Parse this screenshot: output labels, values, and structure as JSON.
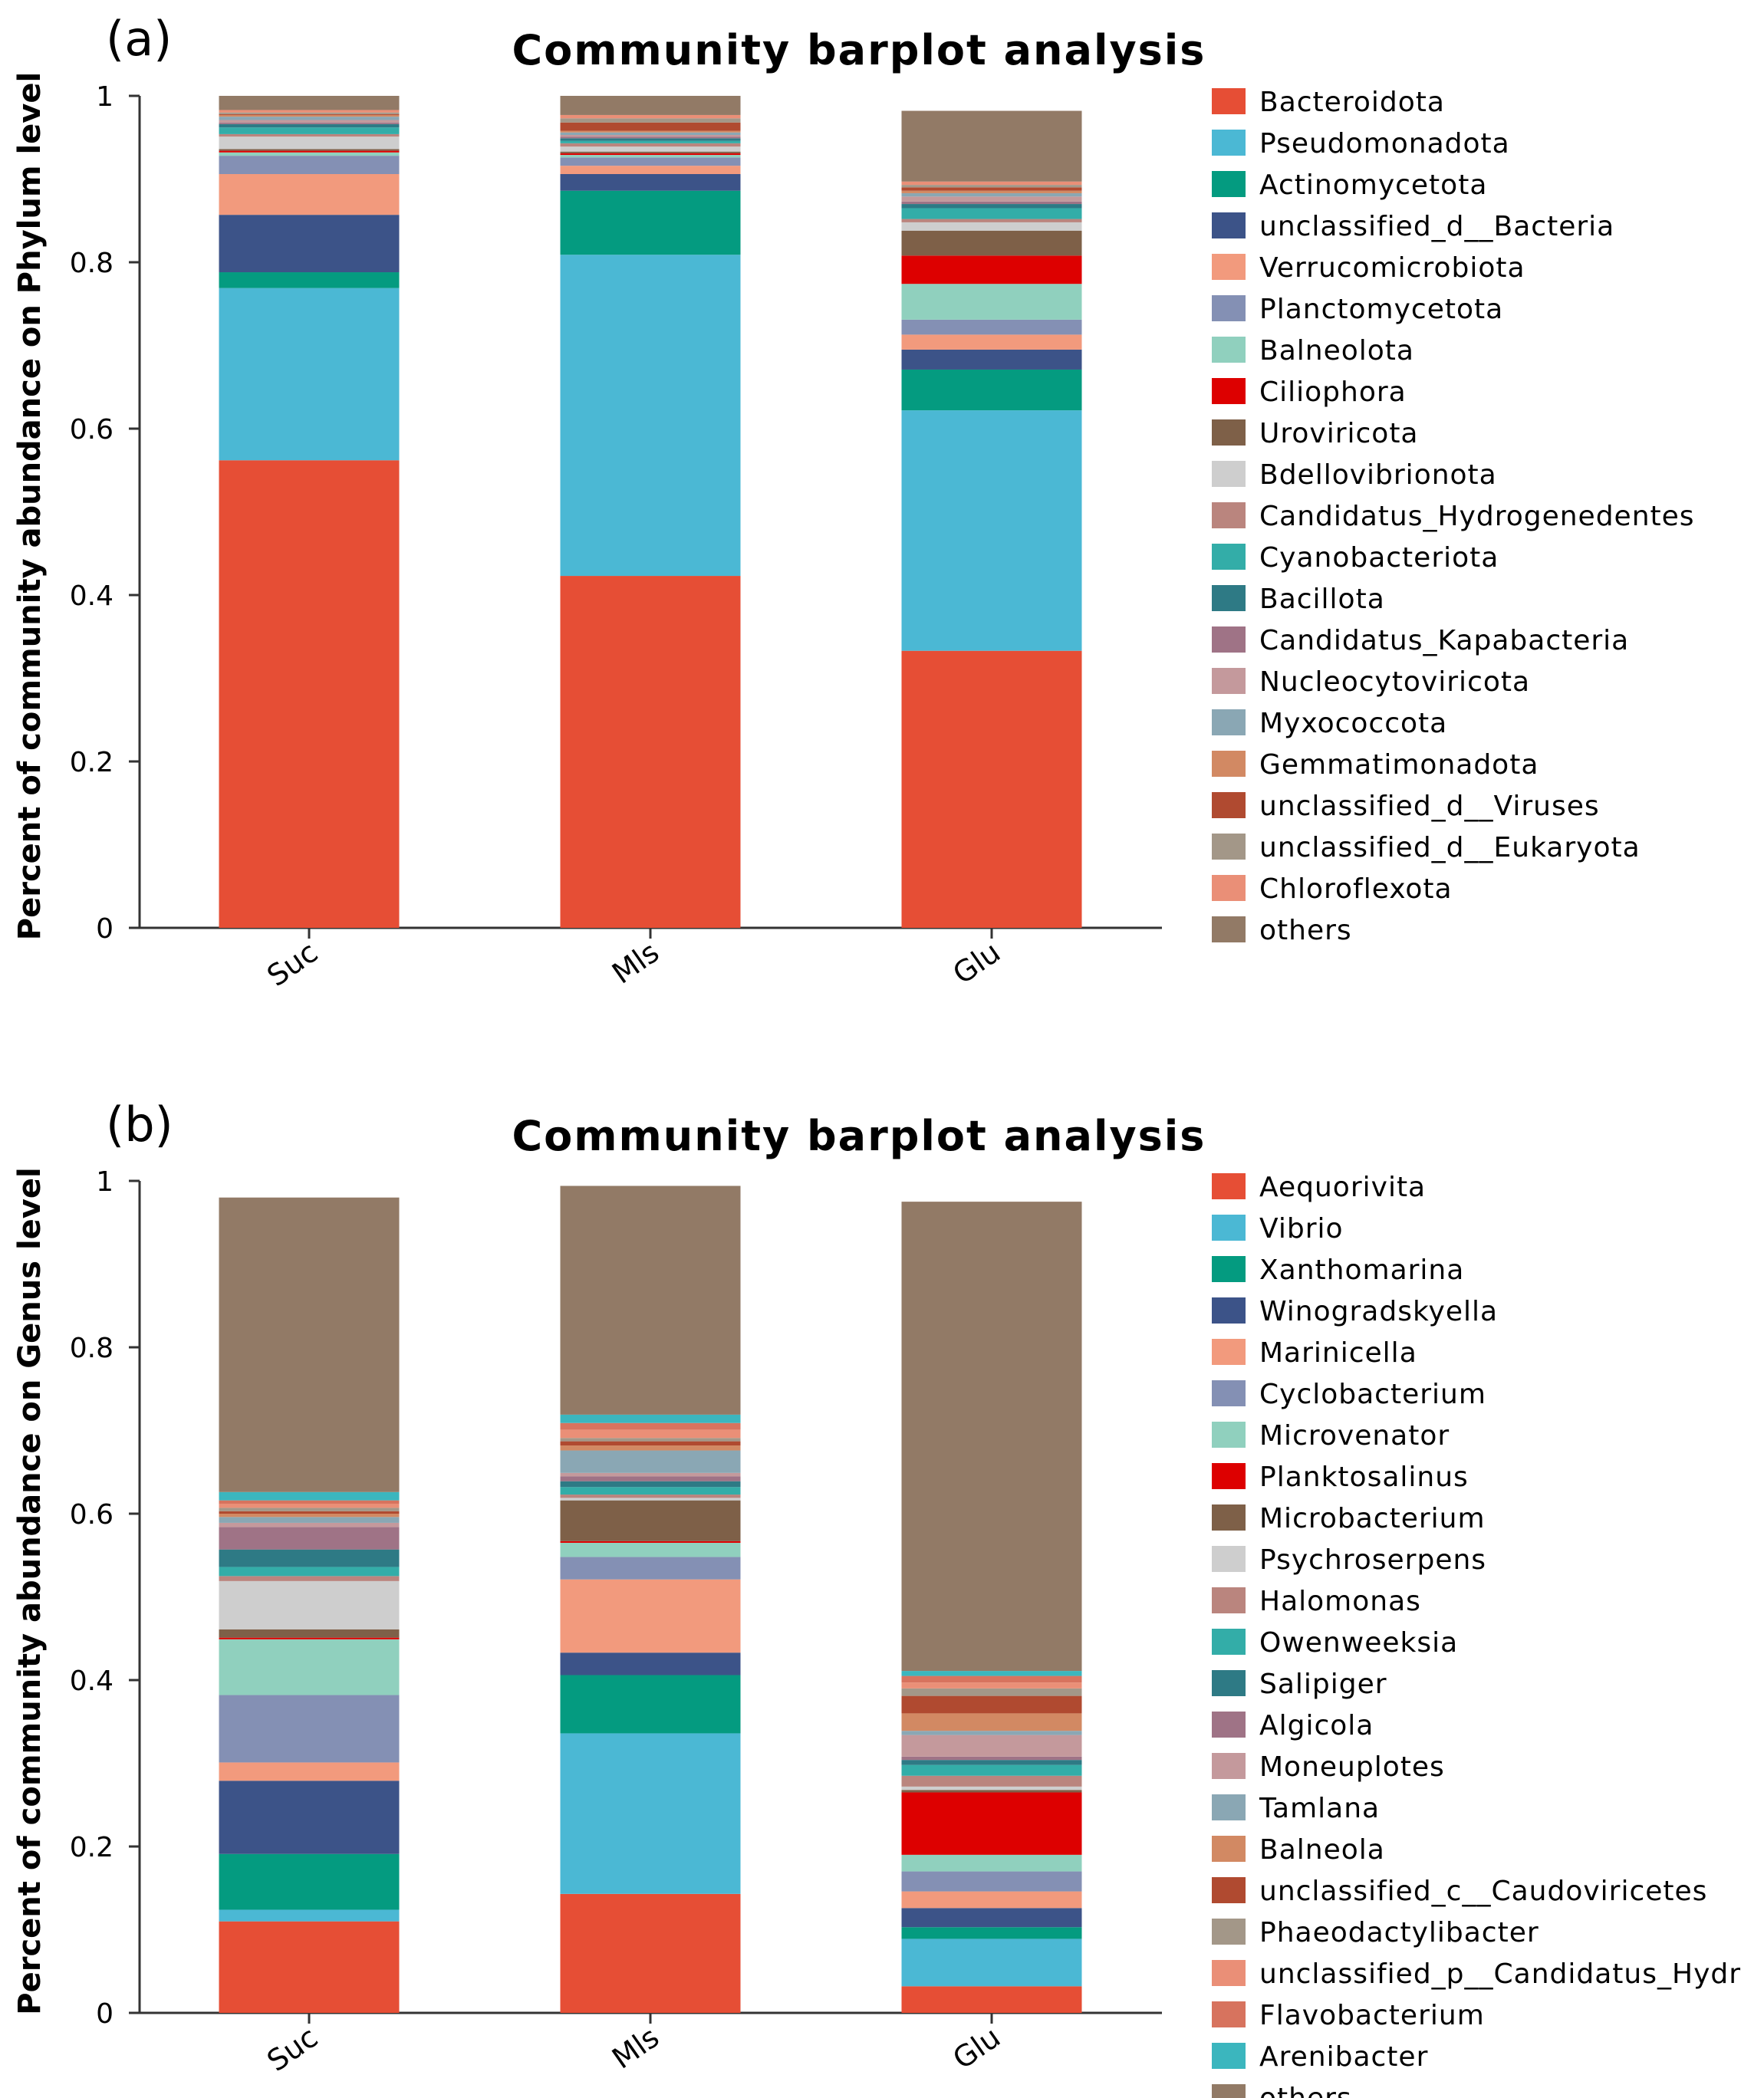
{
  "colors": {
    "palette": [
      "#E64E35",
      "#4BB8D4",
      "#049B80",
      "#3C5388",
      "#F29A7D",
      "#8490B4",
      "#90D0BE",
      "#DD0000",
      "#7E6048",
      "#CECECE",
      "#BA857E",
      "#33ADA8",
      "#2E7A85",
      "#9F7386",
      "#C4999C",
      "#8AA7B4",
      "#D28963",
      "#B04A30",
      "#A39788",
      "#EA8F77",
      "#D7735E",
      "#3BB6BE"
    ],
    "other_color": "#927A66"
  },
  "chart_data": [
    {
      "type": "bar",
      "stacked": true,
      "panel_label": "(a)",
      "title": "Community barplot analysis",
      "ylabel": "Percent of community abundance on Phylum level",
      "xlabel": "",
      "ylim": [
        0,
        1
      ],
      "yticks": [
        "0",
        "0.2",
        "0.4",
        "0.6",
        "0.8",
        "1"
      ],
      "categories": [
        "Suc",
        "Mls",
        "Glu"
      ],
      "legend_position": "right",
      "series": [
        {
          "name": "Bacteroidota",
          "values": [
            0.562,
            0.423,
            0.333
          ]
        },
        {
          "name": "Pseudomonadota",
          "values": [
            0.207,
            0.386,
            0.289
          ]
        },
        {
          "name": "Actinomycetota",
          "values": [
            0.019,
            0.077,
            0.049
          ]
        },
        {
          "name": "unclassified_d__Bacteria",
          "values": [
            0.069,
            0.02,
            0.024
          ]
        },
        {
          "name": "Verrucomicrobiota",
          "values": [
            0.049,
            0.01,
            0.018
          ]
        },
        {
          "name": "Planctomycetota",
          "values": [
            0.022,
            0.01,
            0.018
          ]
        },
        {
          "name": "Balneolota",
          "values": [
            0.004,
            0.003,
            0.043
          ]
        },
        {
          "name": "Ciliophora",
          "values": [
            0.002,
            0.002,
            0.034
          ]
        },
        {
          "name": "Uroviricota",
          "values": [
            0.002,
            0.002,
            0.03
          ]
        },
        {
          "name": "Bdellovibrionota",
          "values": [
            0.015,
            0.006,
            0.01
          ]
        },
        {
          "name": "Candidatus_Hydrogenedentes",
          "values": [
            0.003,
            0.004,
            0.004
          ]
        },
        {
          "name": "Cyanobacteriota",
          "values": [
            0.008,
            0.003,
            0.013
          ]
        },
        {
          "name": "Bacillota",
          "values": [
            0.004,
            0.003,
            0.005
          ]
        },
        {
          "name": "Candidatus_Kapabacteria",
          "values": [
            0.002,
            0.002,
            0.003
          ]
        },
        {
          "name": "Nucleocytoviricota",
          "values": [
            0.003,
            0.002,
            0.006
          ]
        },
        {
          "name": "Myxococcota",
          "values": [
            0.004,
            0.003,
            0.004
          ]
        },
        {
          "name": "Gemmatimonadota",
          "values": [
            0.002,
            0.002,
            0.003
          ]
        },
        {
          "name": "unclassified_d__Viruses",
          "values": [
            0.001,
            0.01,
            0.004
          ]
        },
        {
          "name": "unclassified_d__Eukaryota",
          "values": [
            0.002,
            0.005,
            0.003
          ]
        },
        {
          "name": "Chloroflexota",
          "values": [
            0.003,
            0.004,
            0.004
          ]
        },
        {
          "name": "others",
          "values": [
            0.017,
            0.023,
            0.085
          ]
        }
      ]
    },
    {
      "type": "bar",
      "stacked": true,
      "panel_label": "(b)",
      "title": "Community barplot analysis",
      "ylabel": "Percent of community abundance on Genus level",
      "xlabel": "",
      "ylim": [
        0,
        1
      ],
      "yticks": [
        "0",
        "0.2",
        "0.4",
        "0.6",
        "0.8",
        "1"
      ],
      "categories": [
        "Suc",
        "Mls",
        "Glu"
      ],
      "legend_position": "right",
      "series": [
        {
          "name": "Aequorivita",
          "values": [
            0.11,
            0.143,
            0.032
          ]
        },
        {
          "name": "Vibrio",
          "values": [
            0.014,
            0.193,
            0.057
          ]
        },
        {
          "name": "Xanthomarina",
          "values": [
            0.067,
            0.07,
            0.014
          ]
        },
        {
          "name": "Winogradskyella",
          "values": [
            0.088,
            0.027,
            0.023
          ]
        },
        {
          "name": "Marinicella",
          "values": [
            0.022,
            0.088,
            0.02
          ]
        },
        {
          "name": "Cyclobacterium",
          "values": [
            0.081,
            0.027,
            0.024
          ]
        },
        {
          "name": "Microvenator",
          "values": [
            0.067,
            0.017,
            0.02
          ]
        },
        {
          "name": "Planktosalinus",
          "values": [
            0.002,
            0.002,
            0.075
          ]
        },
        {
          "name": "Microbacterium",
          "values": [
            0.01,
            0.049,
            0.003
          ]
        },
        {
          "name": "Psychroserpens",
          "values": [
            0.058,
            0.003,
            0.004
          ]
        },
        {
          "name": "Halomonas",
          "values": [
            0.006,
            0.004,
            0.013
          ]
        },
        {
          "name": "Owenweeksia",
          "values": [
            0.011,
            0.009,
            0.013
          ]
        },
        {
          "name": "Salipiger",
          "values": [
            0.021,
            0.007,
            0.006
          ]
        },
        {
          "name": "Algicola",
          "values": [
            0.027,
            0.006,
            0.004
          ]
        },
        {
          "name": "Moneuplotes",
          "values": [
            0.005,
            0.004,
            0.026
          ]
        },
        {
          "name": "Tamlana",
          "values": [
            0.007,
            0.027,
            0.005
          ]
        },
        {
          "name": "Balneola",
          "values": [
            0.004,
            0.006,
            0.021
          ]
        },
        {
          "name": "unclassified_c__Caudoviricetes",
          "values": [
            0.003,
            0.005,
            0.021
          ]
        },
        {
          "name": "Phaeodactylibacter",
          "values": [
            0.004,
            0.004,
            0.009
          ]
        },
        {
          "name": "unclassified_p__Candidatus_Hydrogenedentes",
          "values": [
            0.005,
            0.01,
            0.007
          ]
        },
        {
          "name": "Flavobacterium",
          "values": [
            0.004,
            0.008,
            0.008
          ]
        },
        {
          "name": "Arenibacter",
          "values": [
            0.01,
            0.01,
            0.006
          ]
        },
        {
          "name": "others",
          "values": [
            0.354,
            0.275,
            0.564
          ]
        }
      ]
    }
  ]
}
